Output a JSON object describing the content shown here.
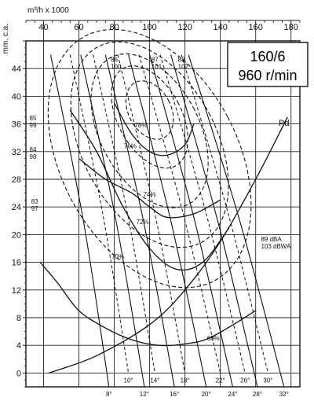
{
  "chart_data": {
    "type": "line",
    "title": "160/6",
    "subtitle": "960 r/min",
    "xlabel": "m³/h x 1000",
    "ylabel": "mm. c.a.",
    "xlim": [
      30,
      185
    ],
    "ylim": [
      -2,
      48
    ],
    "x_ticks": [
      40,
      60,
      80,
      100,
      120,
      140,
      160,
      180
    ],
    "y_ticks": [
      0,
      4,
      8,
      12,
      16,
      20,
      24,
      28,
      32,
      36,
      40,
      44
    ],
    "pd_label": "Pd",
    "pd_curve": [
      [
        43,
        0
      ],
      [
        70,
        2.5
      ],
      [
        100,
        7
      ],
      [
        120,
        12
      ],
      [
        140,
        19
      ],
      [
        160,
        28
      ],
      [
        178,
        37
      ]
    ],
    "system_curves": [
      [
        [
          38,
          16
        ],
        [
          48,
          13
        ],
        [
          60,
          9
        ],
        [
          75,
          6.5
        ],
        [
          90,
          4.8
        ],
        [
          105,
          4.0
        ],
        [
          120,
          4.2
        ],
        [
          135,
          5.2
        ],
        [
          160,
          9
        ]
      ],
      [
        [
          55,
          38
        ],
        [
          70,
          32
        ],
        [
          85,
          24
        ],
        [
          100,
          18
        ],
        [
          115,
          15
        ],
        [
          130,
          16
        ],
        [
          145,
          21
        ]
      ],
      [
        [
          60,
          31
        ],
        [
          75,
          28
        ],
        [
          90,
          26
        ],
        [
          100,
          24
        ],
        [
          110,
          22.5
        ],
        [
          125,
          23
        ],
        [
          140,
          25
        ]
      ],
      [
        [
          80,
          39
        ],
        [
          90,
          34.5
        ],
        [
          100,
          32
        ],
        [
          110,
          31.5
        ],
        [
          120,
          33
        ],
        [
          125,
          36
        ]
      ]
    ],
    "efficiency_rings": [
      {
        "label": "78%",
        "cx": 100,
        "cy": 38,
        "rx": 12,
        "ry": 4.5
      },
      {
        "label": "76%",
        "cx": 100,
        "cy": 37,
        "rx": 18,
        "ry": 8
      },
      {
        "label": "74%",
        "cx": 100,
        "cy": 35,
        "rx": 28,
        "ry": 12
      },
      {
        "label": "72%",
        "cx": 100,
        "cy": 33,
        "rx": 38,
        "ry": 16
      },
      {
        "label": "70%",
        "cx": 100,
        "cy": 31,
        "rx": 50,
        "ry": 20
      }
    ],
    "efficiency_labels": [
      {
        "text": "78%",
        "x": 95,
        "y": 35.5
      },
      {
        "text": "76%",
        "x": 89,
        "y": 32.5
      },
      {
        "text": "74%",
        "x": 100,
        "y": 25.5
      },
      {
        "text": "72%",
        "x": 96,
        "y": 21.5
      },
      {
        "text": "70%",
        "x": 82,
        "y": 16.5
      },
      {
        "text": "68%",
        "x": 136,
        "y": 4.7
      }
    ],
    "blade_lines": [
      {
        "angle": "8°",
        "top": [
          44,
          46
        ],
        "bottom": [
          77,
          -2
        ]
      },
      {
        "angle": "10°",
        "top": [
          55,
          46
        ],
        "bottom": [
          88,
          0
        ]
      },
      {
        "angle": "12°",
        "top": [
          61,
          46
        ],
        "bottom": [
          97,
          -2
        ]
      },
      {
        "angle": "14°",
        "top": [
          68,
          46
        ],
        "bottom": [
          103,
          0
        ]
      },
      {
        "angle": "16°",
        "top": [
          75,
          46
        ],
        "bottom": [
          114,
          -2
        ]
      },
      {
        "angle": "18°",
        "top": [
          82,
          46
        ],
        "bottom": [
          120,
          0
        ]
      },
      {
        "angle": "20°",
        "top": [
          88,
          46
        ],
        "bottom": [
          132,
          -2
        ]
      },
      {
        "angle": "22°",
        "top": [
          94,
          46
        ],
        "bottom": [
          140,
          0
        ]
      },
      {
        "angle": "24°",
        "top": [
          100,
          46
        ],
        "bottom": [
          147,
          -2
        ]
      },
      {
        "angle": "26°",
        "top": [
          106,
          46
        ],
        "bottom": [
          154,
          0
        ]
      },
      {
        "angle": "28°",
        "top": [
          112,
          46
        ],
        "bottom": [
          161,
          -2
        ]
      },
      {
        "angle": "30°",
        "top": [
          118,
          46
        ],
        "bottom": [
          167,
          0
        ]
      },
      {
        "angle": "32°",
        "top": [
          122,
          46
        ],
        "bottom": [
          176,
          -2
        ]
      }
    ],
    "noise_labels": [
      {
        "l1": "86",
        "l2": "100",
        "x": 78,
        "y": 45
      },
      {
        "l1": "87",
        "l2": "101",
        "x": 101,
        "y": 45
      },
      {
        "l1": "88",
        "l2": "102",
        "x": 116,
        "y": 45
      },
      {
        "l1": "85",
        "l2": "99",
        "x": 32,
        "y": 36.5
      },
      {
        "l1": "84",
        "l2": "98",
        "x": 32,
        "y": 32
      },
      {
        "l1": "83",
        "l2": "97",
        "x": 33,
        "y": 24.5
      },
      {
        "l1": "89 dBA",
        "l2": "103 dBWA",
        "x": 163,
        "y": 19
      }
    ]
  }
}
